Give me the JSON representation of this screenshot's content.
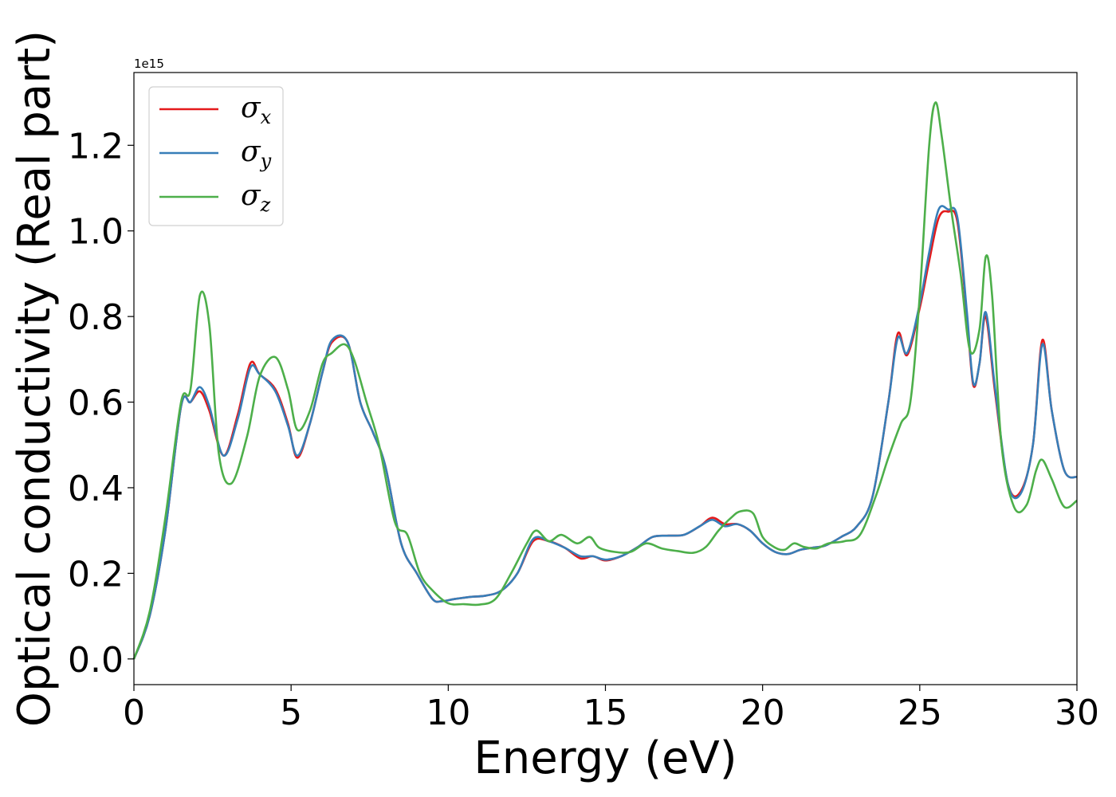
{
  "chart_data": {
    "type": "line",
    "xlabel": "Energy (eV)",
    "ylabel": "Optical conductivity (Real part)",
    "y_offset_label": "1e15",
    "xlim": [
      0,
      30
    ],
    "ylim": [
      -0.06,
      1.37
    ],
    "xticks": [
      0,
      5,
      10,
      15,
      20,
      25,
      30
    ],
    "xtick_labels": [
      "0",
      "5",
      "10",
      "15",
      "20",
      "25",
      "30"
    ],
    "yticks": [
      0.0,
      0.2,
      0.4,
      0.6,
      0.8,
      1.0,
      1.2
    ],
    "ytick_labels": [
      "0.0",
      "0.2",
      "0.4",
      "0.6",
      "0.8",
      "1.0",
      "1.2"
    ],
    "grid": false,
    "legend_position": "top-left",
    "series": [
      {
        "name": "σx",
        "name_base": "σ",
        "name_sub": "x",
        "color": "#e41a1c",
        "x": [
          0,
          0.5,
          1,
          1.5,
          1.8,
          2.1,
          2.4,
          2.85,
          3.3,
          3.7,
          4.0,
          4.5,
          4.9,
          5.2,
          5.6,
          6.0,
          6.3,
          6.8,
          7.2,
          7.6,
          8.0,
          8.5,
          9.0,
          9.5,
          9.8,
          10.2,
          10.7,
          11.2,
          11.7,
          12.2,
          12.7,
          13.2,
          13.7,
          14.2,
          14.6,
          15.0,
          15.5,
          16.0,
          16.5,
          17.0,
          17.5,
          18.0,
          18.4,
          18.8,
          19.2,
          19.6,
          20.0,
          20.4,
          20.8,
          21.2,
          21.6,
          22.0,
          22.5,
          23.0,
          23.5,
          24.0,
          24.3,
          24.6,
          25.0,
          25.3,
          25.6,
          25.9,
          26.2,
          26.5,
          26.7,
          26.9,
          27.1,
          27.4,
          27.8,
          28.2,
          28.6,
          28.9,
          29.2,
          29.6,
          30.0
        ],
        "y": [
          0.0,
          0.1,
          0.3,
          0.59,
          0.6,
          0.625,
          0.58,
          0.475,
          0.57,
          0.69,
          0.665,
          0.63,
          0.55,
          0.47,
          0.55,
          0.67,
          0.74,
          0.74,
          0.6,
          0.53,
          0.45,
          0.27,
          0.2,
          0.14,
          0.135,
          0.14,
          0.145,
          0.148,
          0.16,
          0.2,
          0.275,
          0.275,
          0.26,
          0.235,
          0.24,
          0.23,
          0.24,
          0.26,
          0.285,
          0.288,
          0.29,
          0.31,
          0.33,
          0.315,
          0.315,
          0.3,
          0.27,
          0.25,
          0.245,
          0.255,
          0.26,
          0.265,
          0.285,
          0.31,
          0.38,
          0.6,
          0.76,
          0.71,
          0.82,
          0.93,
          1.03,
          1.045,
          1.02,
          0.8,
          0.64,
          0.69,
          0.8,
          0.62,
          0.41,
          0.39,
          0.5,
          0.745,
          0.58,
          0.44,
          0.425
        ]
      },
      {
        "name": "σy",
        "name_base": "σ",
        "name_sub": "y",
        "color": "#377eb8",
        "x": [
          0,
          0.5,
          1,
          1.5,
          1.8,
          2.1,
          2.4,
          2.85,
          3.3,
          3.7,
          4.0,
          4.5,
          4.9,
          5.2,
          5.6,
          6.0,
          6.3,
          6.8,
          7.2,
          7.6,
          8.0,
          8.5,
          9.0,
          9.5,
          9.8,
          10.2,
          10.7,
          11.2,
          11.7,
          12.2,
          12.7,
          13.2,
          13.7,
          14.2,
          14.6,
          15.0,
          15.5,
          16.0,
          16.5,
          17.0,
          17.5,
          18.0,
          18.4,
          18.8,
          19.2,
          19.6,
          20.0,
          20.4,
          20.8,
          21.2,
          21.6,
          22.0,
          22.5,
          23.0,
          23.5,
          24.0,
          24.3,
          24.6,
          25.0,
          25.3,
          25.6,
          25.9,
          26.2,
          26.5,
          26.7,
          26.9,
          27.1,
          27.4,
          27.8,
          28.2,
          28.6,
          28.9,
          29.2,
          29.6,
          30.0
        ],
        "y": [
          0.0,
          0.1,
          0.3,
          0.59,
          0.6,
          0.635,
          0.59,
          0.475,
          0.56,
          0.68,
          0.665,
          0.625,
          0.545,
          0.475,
          0.55,
          0.67,
          0.745,
          0.74,
          0.6,
          0.53,
          0.45,
          0.27,
          0.2,
          0.14,
          0.135,
          0.14,
          0.145,
          0.148,
          0.16,
          0.2,
          0.28,
          0.275,
          0.26,
          0.24,
          0.24,
          0.232,
          0.24,
          0.26,
          0.285,
          0.288,
          0.29,
          0.31,
          0.325,
          0.31,
          0.315,
          0.3,
          0.27,
          0.25,
          0.245,
          0.255,
          0.26,
          0.265,
          0.285,
          0.31,
          0.38,
          0.6,
          0.75,
          0.715,
          0.83,
          0.95,
          1.05,
          1.05,
          1.03,
          0.81,
          0.645,
          0.69,
          0.81,
          0.63,
          0.41,
          0.385,
          0.5,
          0.735,
          0.58,
          0.44,
          0.425
        ]
      },
      {
        "name": "σz",
        "name_base": "σ",
        "name_sub": "z",
        "color": "#4daf4a",
        "x": [
          0,
          0.5,
          1,
          1.5,
          1.8,
          2.1,
          2.4,
          2.7,
          3.1,
          3.6,
          4.0,
          4.5,
          4.9,
          5.2,
          5.6,
          6.0,
          6.3,
          6.7,
          7.0,
          7.4,
          7.8,
          8.3,
          8.7,
          9.1,
          9.5,
          10.0,
          10.5,
          11.0,
          11.5,
          12.0,
          12.5,
          12.8,
          13.2,
          13.6,
          14.1,
          14.5,
          14.8,
          15.3,
          15.8,
          16.3,
          16.8,
          17.3,
          17.8,
          18.2,
          18.6,
          19.0,
          19.3,
          19.7,
          20.0,
          20.4,
          20.7,
          21.0,
          21.3,
          21.7,
          22.1,
          22.6,
          23.1,
          23.6,
          24.0,
          24.4,
          24.7,
          25.0,
          25.3,
          25.5,
          25.7,
          26.0,
          26.3,
          26.6,
          26.9,
          27.1,
          27.3,
          27.6,
          28.0,
          28.4,
          28.7,
          28.9,
          29.2,
          29.6,
          30.0
        ],
        "y": [
          0.0,
          0.11,
          0.33,
          0.6,
          0.63,
          0.85,
          0.78,
          0.48,
          0.41,
          0.52,
          0.66,
          0.705,
          0.63,
          0.535,
          0.58,
          0.69,
          0.715,
          0.735,
          0.7,
          0.6,
          0.5,
          0.32,
          0.29,
          0.2,
          0.16,
          0.13,
          0.128,
          0.127,
          0.14,
          0.2,
          0.27,
          0.3,
          0.275,
          0.29,
          0.27,
          0.285,
          0.26,
          0.25,
          0.25,
          0.27,
          0.258,
          0.252,
          0.248,
          0.262,
          0.3,
          0.33,
          0.345,
          0.34,
          0.285,
          0.26,
          0.255,
          0.27,
          0.262,
          0.258,
          0.27,
          0.275,
          0.29,
          0.38,
          0.47,
          0.55,
          0.6,
          0.85,
          1.2,
          1.3,
          1.22,
          1.05,
          0.9,
          0.72,
          0.77,
          0.94,
          0.85,
          0.5,
          0.355,
          0.36,
          0.44,
          0.465,
          0.42,
          0.355,
          0.37
        ]
      }
    ]
  }
}
